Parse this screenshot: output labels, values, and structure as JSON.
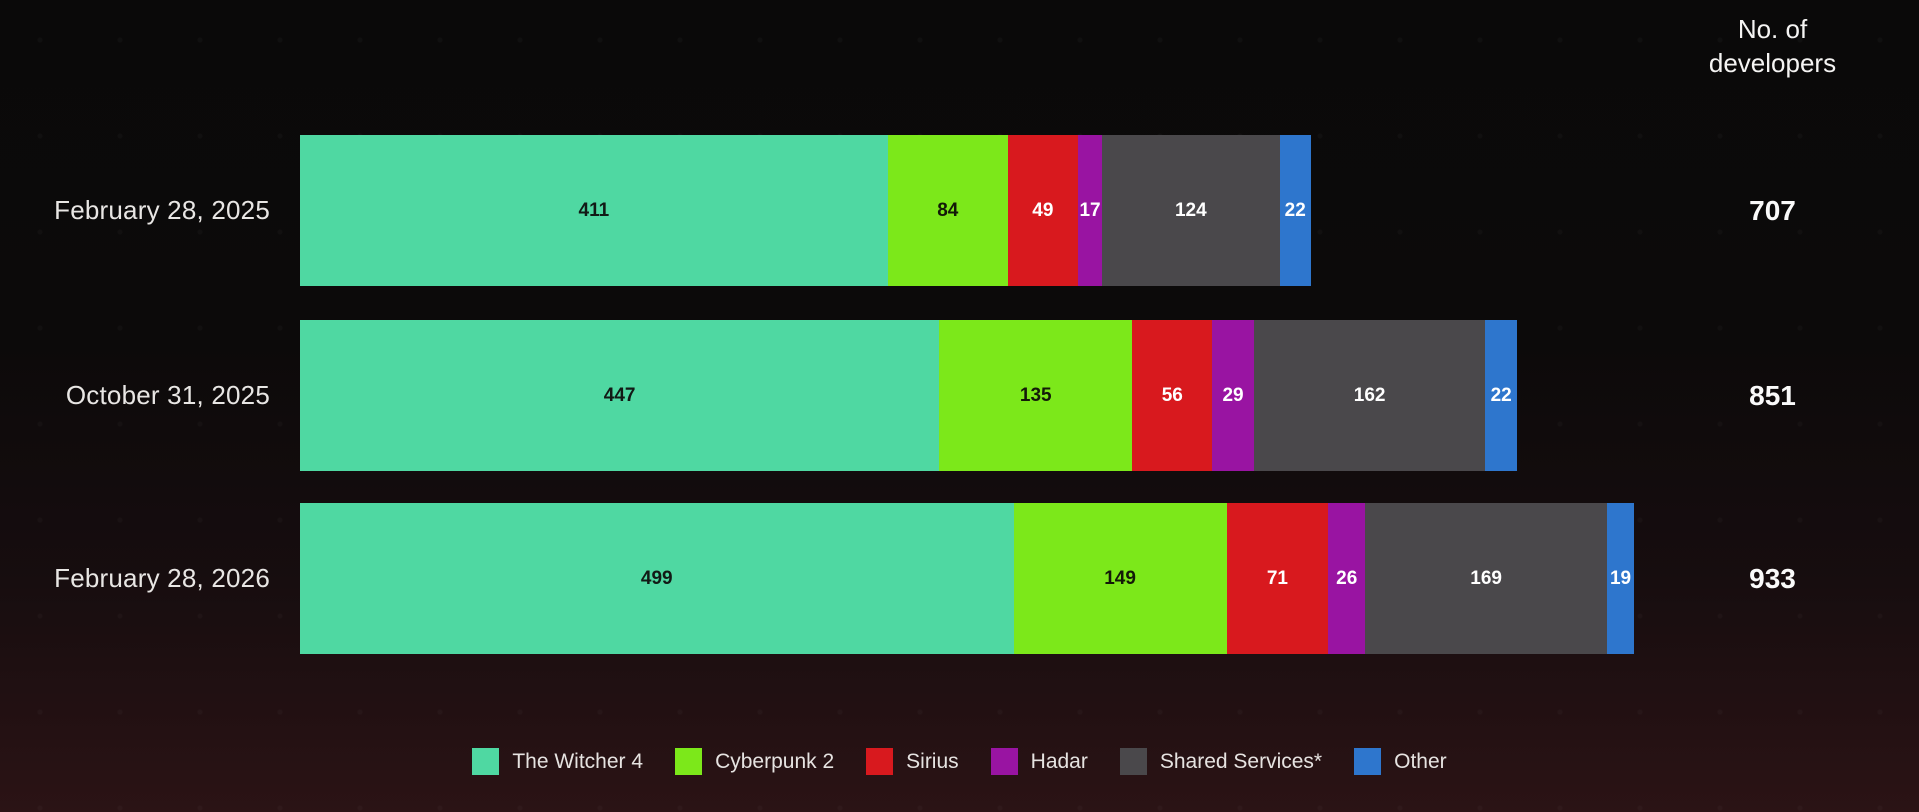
{
  "header": {
    "unit_label": "No. of developers"
  },
  "chart_data": {
    "type": "bar",
    "variant": "horizontal_stacked",
    "title": "",
    "unit_label": "No. of developers",
    "legend_position": "bottom",
    "background_top_color": "#0a0909",
    "background_bottom_color": "#2b1315",
    "series": [
      {
        "name": "The Witcher 4",
        "color": "#4fd8a2",
        "text_color": "#121a16"
      },
      {
        "name": "Cyberpunk 2",
        "color": "#7ce81a",
        "text_color": "#131a08"
      },
      {
        "name": "Sirius",
        "color": "#d8191e",
        "text_color": "#ffffff"
      },
      {
        "name": "Hadar",
        "color": "#9914a2",
        "text_color": "#ffffff"
      },
      {
        "name": "Shared Services*",
        "color": "#4a484b",
        "text_color": "#ffffff"
      },
      {
        "name": "Other",
        "color": "#2e76cd",
        "text_color": "#ffffff"
      }
    ],
    "rows": [
      {
        "label": "February 28, 2025",
        "values": [
          411,
          84,
          49,
          17,
          124,
          22
        ],
        "total": 707
      },
      {
        "label": "October 31, 2025",
        "values": [
          447,
          135,
          56,
          29,
          162,
          22
        ],
        "total": 851
      },
      {
        "label": "February 28, 2026",
        "values": [
          499,
          149,
          71,
          26,
          169,
          19
        ],
        "total": 933
      }
    ]
  }
}
